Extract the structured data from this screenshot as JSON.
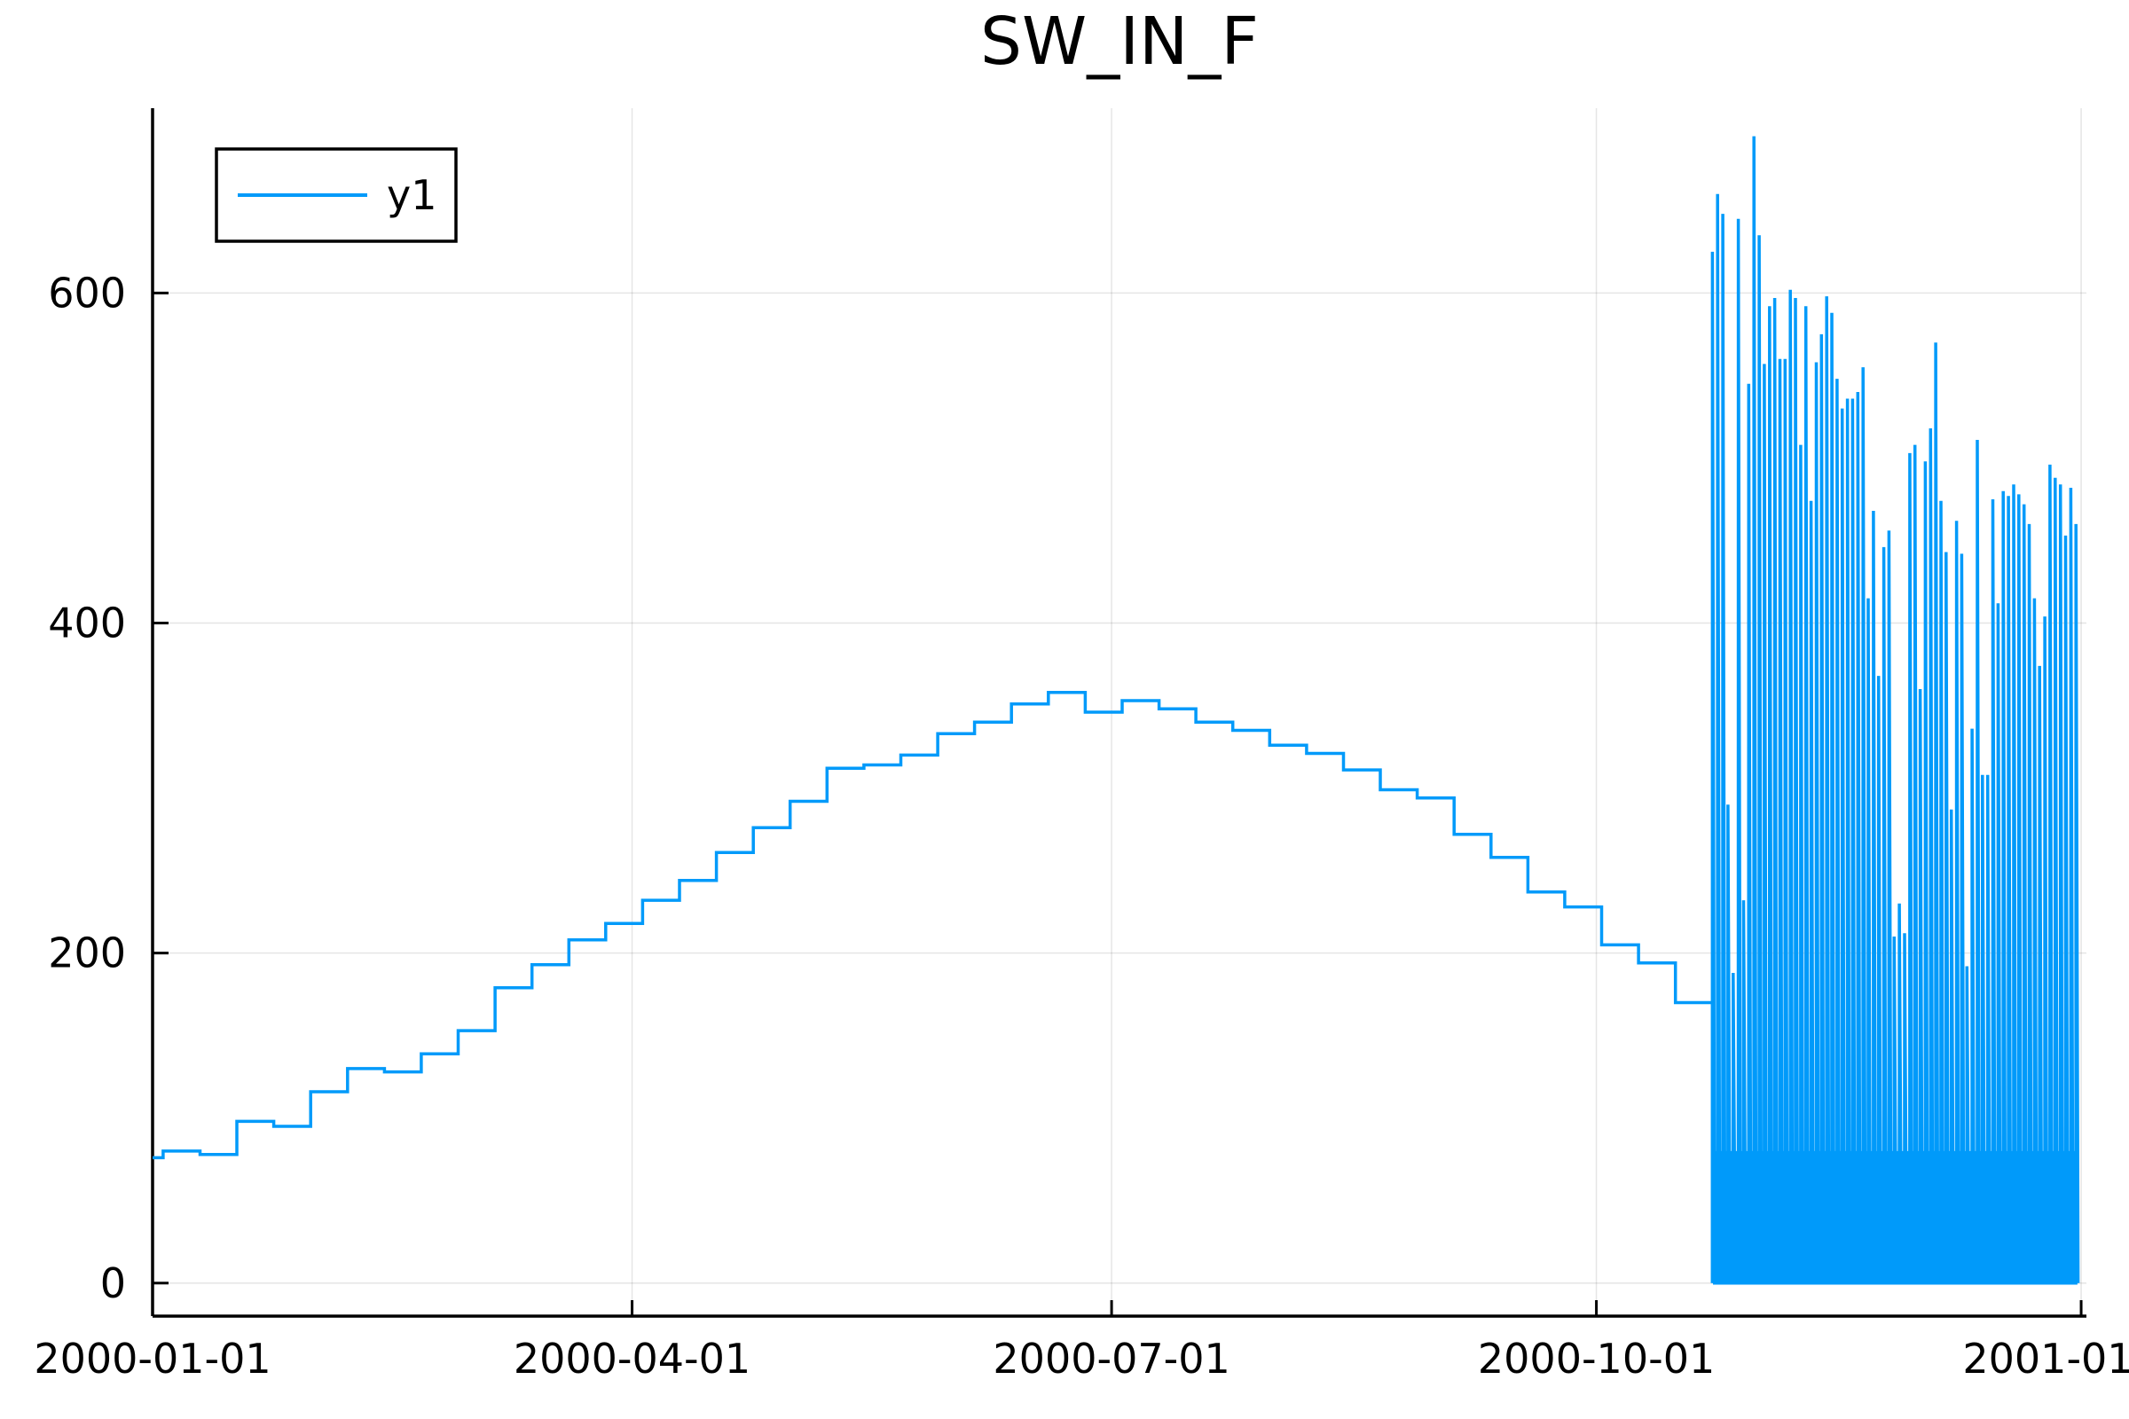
{
  "chart_data": {
    "type": "line",
    "title": "SW_IN_F",
    "xlabel": "",
    "ylabel": "",
    "x_axis": {
      "type": "date",
      "range": [
        "2000-01-01",
        "2001-01-02"
      ],
      "ticks": [
        "2000-01-01",
        "2000-04-01",
        "2000-07-01",
        "2000-10-01",
        "2001-01-01"
      ],
      "tick_labels": [
        "2000-01-01",
        "2000-04-01",
        "2000-07-01",
        "2000-10-01",
        "2001-01-01"
      ]
    },
    "y_axis": {
      "range": [
        -20,
        712
      ],
      "ticks": [
        0,
        200,
        400,
        600
      ],
      "tick_labels": [
        "0",
        "200",
        "400",
        "600"
      ]
    },
    "grid": true,
    "legend": {
      "placement": "top-left",
      "entries": [
        "y1"
      ]
    },
    "series": [
      {
        "name": "y1",
        "color": "#009AFA",
        "step_segment": {
          "x": [
            "2000-01-01",
            "2000-01-03",
            "2000-01-10",
            "2000-01-17",
            "2000-01-24",
            "2000-01-31",
            "2000-02-07",
            "2000-02-14",
            "2000-02-21",
            "2000-02-28",
            "2000-03-06",
            "2000-03-13",
            "2000-03-20",
            "2000-03-27",
            "2000-04-03",
            "2000-04-10",
            "2000-04-17",
            "2000-04-24",
            "2000-05-01",
            "2000-05-08",
            "2000-05-15",
            "2000-05-22",
            "2000-05-29",
            "2000-06-05",
            "2000-06-12",
            "2000-06-19",
            "2000-06-26",
            "2000-07-03",
            "2000-07-10",
            "2000-07-17",
            "2000-07-24",
            "2000-07-31",
            "2000-08-07",
            "2000-08-14",
            "2000-08-21",
            "2000-08-28",
            "2000-09-04",
            "2000-09-11",
            "2000-09-18",
            "2000-09-25",
            "2000-10-02",
            "2000-10-09",
            "2000-10-16",
            "2000-10-22"
          ],
          "y": [
            76,
            80,
            78,
            98,
            95,
            116,
            130,
            128,
            139,
            153,
            179,
            193,
            208,
            218,
            232,
            244,
            261,
            276,
            292,
            312,
            314,
            320,
            333,
            340,
            351,
            358,
            346,
            353,
            348,
            340,
            335,
            326,
            321,
            311,
            299,
            294,
            272,
            258,
            237,
            228,
            205,
            194,
            170,
            170
          ]
        },
        "daily_segment": {
          "start": "2000-10-23",
          "end": "2000-12-31",
          "peaks": [
            625,
            660,
            648,
            290,
            188,
            645,
            232,
            545,
            695,
            635,
            557,
            592,
            597,
            560,
            560,
            602,
            597,
            508,
            592,
            474,
            558,
            575,
            598,
            588,
            548,
            530,
            536,
            536,
            540,
            555,
            415,
            468,
            368,
            446,
            456,
            210,
            230,
            212,
            503,
            508,
            360,
            498,
            518,
            570,
            474,
            443,
            287,
            462,
            442,
            192,
            336,
            511,
            308,
            308,
            475,
            412,
            480,
            477,
            484,
            478,
            472,
            460,
            415,
            374,
            404,
            496,
            488,
            484,
            453,
            482,
            460
          ],
          "troughs": [
            0
          ]
        }
      }
    ]
  }
}
